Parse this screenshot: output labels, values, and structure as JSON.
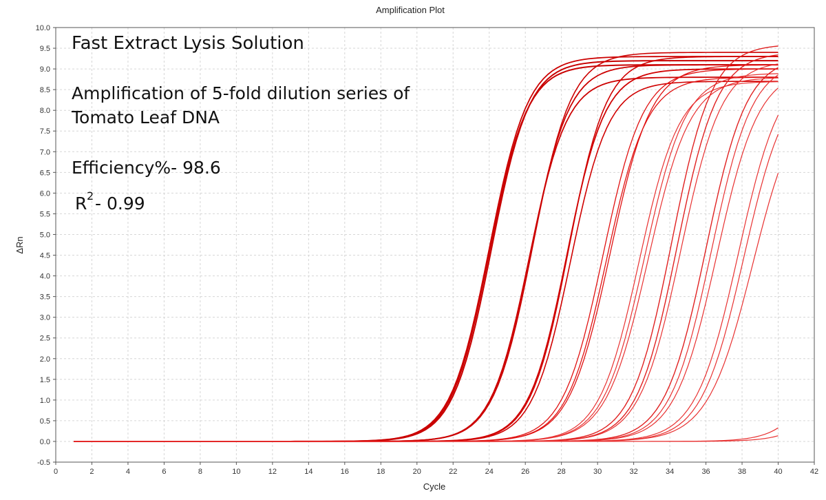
{
  "chart_data": {
    "type": "line",
    "title": "Amplification Plot",
    "xlabel": "Cycle",
    "ylabel": "ΔRn",
    "xlim": [
      0,
      42
    ],
    "ylim": [
      -0.5,
      10.0
    ],
    "xticks": [
      "0",
      "2",
      "4",
      "6",
      "8",
      "10",
      "12",
      "14",
      "16",
      "18",
      "20",
      "22",
      "24",
      "26",
      "28",
      "30",
      "32",
      "34",
      "36",
      "38",
      "40",
      "42"
    ],
    "yticks": [
      "-0.5",
      "0.0",
      "0.5",
      "1.0",
      "1.5",
      "2.0",
      "2.5",
      "3.0",
      "3.5",
      "4.0",
      "4.5",
      "5.0",
      "5.5",
      "6.0",
      "6.5",
      "7.0",
      "7.5",
      "8.0",
      "8.5",
      "9.0",
      "9.5",
      "10.0"
    ],
    "grid": true,
    "annotations": {
      "line1": "Fast Extract Lysis Solution",
      "line2a": "Amplification of 5-fold dilution series of",
      "line2b": "Tomato Leaf DNA",
      "efficiency": "Efficiency%- 98.6",
      "r_base": "R",
      "r_sup": "2",
      "r_value": "- 0.99"
    },
    "x_start": 1,
    "x_end": 40,
    "series": [
      {
        "midpoint": 24.0,
        "plateau": 9.1,
        "slope": 0.95,
        "color": "#c80000",
        "width": 2.0
      },
      {
        "midpoint": 24.1,
        "plateau": 9.2,
        "slope": 0.95,
        "color": "#c80000",
        "width": 2.0
      },
      {
        "midpoint": 24.0,
        "plateau": 9.3,
        "slope": 0.93,
        "color": "#cc0000",
        "width": 1.8
      },
      {
        "midpoint": 26.2,
        "plateau": 8.8,
        "slope": 0.95,
        "color": "#cc0000",
        "width": 1.8
      },
      {
        "midpoint": 26.3,
        "plateau": 9.1,
        "slope": 0.95,
        "color": "#cc0000",
        "width": 1.8
      },
      {
        "midpoint": 26.4,
        "plateau": 9.4,
        "slope": 0.93,
        "color": "#cc0000",
        "width": 1.6
      },
      {
        "midpoint": 28.3,
        "plateau": 9.0,
        "slope": 0.95,
        "color": "#d00000",
        "width": 1.8
      },
      {
        "midpoint": 28.4,
        "plateau": 9.3,
        "slope": 0.95,
        "color": "#d00000",
        "width": 1.6
      },
      {
        "midpoint": 28.5,
        "plateau": 8.7,
        "slope": 0.95,
        "color": "#d00000",
        "width": 1.6
      },
      {
        "midpoint": 30.3,
        "plateau": 9.0,
        "slope": 0.9,
        "color": "#e01010",
        "width": 1.3
      },
      {
        "midpoint": 30.5,
        "plateau": 8.8,
        "slope": 0.9,
        "color": "#e01010",
        "width": 1.3
      },
      {
        "midpoint": 30.7,
        "plateau": 9.1,
        "slope": 0.88,
        "color": "#e01010",
        "width": 1.3
      },
      {
        "midpoint": 32.3,
        "plateau": 8.7,
        "slope": 0.9,
        "color": "#e83030",
        "width": 1.2
      },
      {
        "midpoint": 32.6,
        "plateau": 8.9,
        "slope": 0.88,
        "color": "#e83030",
        "width": 1.2
      },
      {
        "midpoint": 32.8,
        "plateau": 8.8,
        "slope": 0.86,
        "color": "#e83030",
        "width": 1.2
      },
      {
        "midpoint": 34.1,
        "plateau": 9.6,
        "slope": 0.9,
        "color": "#e02020",
        "width": 1.4
      },
      {
        "midpoint": 34.4,
        "plateau": 9.4,
        "slope": 0.9,
        "color": "#e02020",
        "width": 1.4
      },
      {
        "midpoint": 34.6,
        "plateau": 9.2,
        "slope": 0.88,
        "color": "#e83030",
        "width": 1.2
      },
      {
        "midpoint": 36.0,
        "plateau": 9.3,
        "slope": 0.88,
        "color": "#e02020",
        "width": 1.4
      },
      {
        "midpoint": 36.3,
        "plateau": 9.2,
        "slope": 0.88,
        "color": "#e83030",
        "width": 1.2
      },
      {
        "midpoint": 36.6,
        "plateau": 9.0,
        "slope": 0.86,
        "color": "#e83030",
        "width": 1.2
      },
      {
        "midpoint": 37.8,
        "plateau": 9.1,
        "slope": 0.85,
        "color": "#e83030",
        "width": 1.2
      },
      {
        "midpoint": 38.1,
        "plateau": 8.9,
        "slope": 0.85,
        "color": "#e83030",
        "width": 1.2
      },
      {
        "midpoint": 38.6,
        "plateau": 8.6,
        "slope": 0.8,
        "color": "#e83030",
        "width": 1.2
      },
      {
        "midpoint": 43.5,
        "plateau": 8.0,
        "slope": 0.9,
        "color": "#e83030",
        "width": 1.2
      },
      {
        "midpoint": 44.5,
        "plateau": 8.0,
        "slope": 0.9,
        "color": "#e83030",
        "width": 1.2
      }
    ]
  }
}
